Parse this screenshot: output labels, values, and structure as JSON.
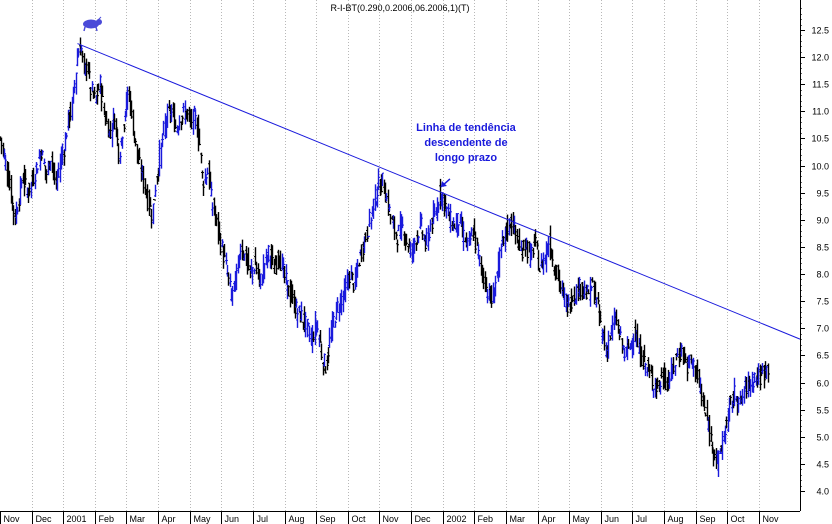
{
  "chart_data": {
    "type": "line",
    "title": "R-I-BT(0.290,0.2006,06.2006,1)(T)",
    "xlabel": "",
    "ylabel": "",
    "ylim": [
      3.8,
      13.0
    ],
    "y_ticks": [
      4.0,
      4.5,
      5.0,
      5.5,
      6.0,
      6.5,
      7.0,
      7.5,
      8.0,
      8.5,
      9.0,
      9.5,
      10.0,
      10.5,
      11.0,
      11.5,
      12.0,
      12.5
    ],
    "y_tick_labels": [
      "4.0",
      "4.5",
      "5.0",
      "5.5",
      "6.0",
      "6.5",
      "7.0",
      "7.5",
      "8.0",
      "8.5",
      "9.0",
      "9.5",
      "10.0",
      "10.5",
      "11.0",
      "11.5",
      "12.0",
      "12.5"
    ],
    "x_tick_labels": [
      "Nov",
      "Dec",
      "2001",
      "Feb",
      "Mar",
      "Apr",
      "May",
      "Jun",
      "Jul",
      "Aug",
      "Sep",
      "Oct",
      "Nov",
      "Dec",
      "2002",
      "Feb",
      "Mar",
      "Apr",
      "May",
      "Jun",
      "Jul",
      "Aug",
      "Sep",
      "Oct",
      "Nov"
    ],
    "x_tick_months": [
      0,
      1,
      2,
      3,
      4,
      5,
      6,
      7,
      8,
      9,
      10,
      11,
      12,
      13,
      14,
      15,
      16,
      17,
      18,
      19,
      20,
      21,
      22,
      23,
      24
    ],
    "x_range_months": [
      0,
      25.3
    ],
    "grid": "vertical-dotted",
    "colors": {
      "up": "#1a1adc",
      "down": "#000000",
      "trendline": "#1a1adc",
      "annotation": "#1a1adc"
    },
    "series": [
      {
        "price_path": [
          [
            0.0,
            10.5
          ],
          [
            0.15,
            10.1
          ],
          [
            0.3,
            9.6
          ],
          [
            0.45,
            9.0
          ],
          [
            0.55,
            9.3
          ],
          [
            0.7,
            9.8
          ],
          [
            0.85,
            9.5
          ],
          [
            1.0,
            9.7
          ],
          [
            1.15,
            10.0
          ],
          [
            1.3,
            10.3
          ],
          [
            1.45,
            9.8
          ],
          [
            1.6,
            10.2
          ],
          [
            1.75,
            9.6
          ],
          [
            1.9,
            10.1
          ],
          [
            2.05,
            10.4
          ],
          [
            2.15,
            10.9
          ],
          [
            2.25,
            11.0
          ],
          [
            2.35,
            11.5
          ],
          [
            2.45,
            12.1
          ],
          [
            2.55,
            12.2
          ],
          [
            2.65,
            11.7
          ],
          [
            2.75,
            11.9
          ],
          [
            2.85,
            11.4
          ],
          [
            3.0,
            11.2
          ],
          [
            3.15,
            11.5
          ],
          [
            3.3,
            10.9
          ],
          [
            3.45,
            10.6
          ],
          [
            3.6,
            10.9
          ],
          [
            3.75,
            10.2
          ],
          [
            3.9,
            10.8
          ],
          [
            4.05,
            11.4
          ],
          [
            4.2,
            10.7
          ],
          [
            4.35,
            10.1
          ],
          [
            4.5,
            9.8
          ],
          [
            4.65,
            9.4
          ],
          [
            4.8,
            9.1
          ],
          [
            4.95,
            9.8
          ],
          [
            5.1,
            10.4
          ],
          [
            5.25,
            10.9
          ],
          [
            5.4,
            11.0
          ],
          [
            5.55,
            10.7
          ],
          [
            5.7,
            10.9
          ],
          [
            5.85,
            11.0
          ],
          [
            6.0,
            10.8
          ],
          [
            6.15,
            10.9
          ],
          [
            6.3,
            10.4
          ],
          [
            6.4,
            9.7
          ],
          [
            6.55,
            9.9
          ],
          [
            6.7,
            9.3
          ],
          [
            6.85,
            8.9
          ],
          [
            7.0,
            8.5
          ],
          [
            7.15,
            8.1
          ],
          [
            7.3,
            7.6
          ],
          [
            7.45,
            7.9
          ],
          [
            7.6,
            8.5
          ],
          [
            7.75,
            8.3
          ],
          [
            7.9,
            8.0
          ],
          [
            8.05,
            8.2
          ],
          [
            8.2,
            7.8
          ],
          [
            8.35,
            8.2
          ],
          [
            8.5,
            8.4
          ],
          [
            8.65,
            8.1
          ],
          [
            8.8,
            8.4
          ],
          [
            8.95,
            8.0
          ],
          [
            9.1,
            7.7
          ],
          [
            9.25,
            7.5
          ],
          [
            9.4,
            7.3
          ],
          [
            9.55,
            7.2
          ],
          [
            9.7,
            7.0
          ],
          [
            9.85,
            6.8
          ],
          [
            10.0,
            7.1
          ],
          [
            10.1,
            6.8
          ],
          [
            10.2,
            6.4
          ],
          [
            10.3,
            6.3
          ],
          [
            10.45,
            6.9
          ],
          [
            10.6,
            7.3
          ],
          [
            10.75,
            7.5
          ],
          [
            10.9,
            7.7
          ],
          [
            11.05,
            8.0
          ],
          [
            11.2,
            7.8
          ],
          [
            11.35,
            8.3
          ],
          [
            11.5,
            8.6
          ],
          [
            11.65,
            8.9
          ],
          [
            11.8,
            9.3
          ],
          [
            11.95,
            9.6
          ],
          [
            12.1,
            9.7
          ],
          [
            12.25,
            9.3
          ],
          [
            12.4,
            8.9
          ],
          [
            12.55,
            8.7
          ],
          [
            12.7,
            8.9
          ],
          [
            12.85,
            8.6
          ],
          [
            13.0,
            8.4
          ],
          [
            13.15,
            8.7
          ],
          [
            13.3,
            8.9
          ],
          [
            13.45,
            8.5
          ],
          [
            13.6,
            8.9
          ],
          [
            13.75,
            9.1
          ],
          [
            13.9,
            9.5
          ],
          [
            14.05,
            9.3
          ],
          [
            14.2,
            9.0
          ],
          [
            14.35,
            8.9
          ],
          [
            14.5,
            9.0
          ],
          [
            14.65,
            8.7
          ],
          [
            14.8,
            8.5
          ],
          [
            14.95,
            8.8
          ],
          [
            15.1,
            8.4
          ],
          [
            15.25,
            8.0
          ],
          [
            15.4,
            7.7
          ],
          [
            15.55,
            7.5
          ],
          [
            15.7,
            8.0
          ],
          [
            15.85,
            8.5
          ],
          [
            16.0,
            8.8
          ],
          [
            16.15,
            9.0
          ],
          [
            16.3,
            8.7
          ],
          [
            16.45,
            8.4
          ],
          [
            16.6,
            8.6
          ],
          [
            16.75,
            8.3
          ],
          [
            16.9,
            8.6
          ],
          [
            17.05,
            8.1
          ],
          [
            17.2,
            8.3
          ],
          [
            17.35,
            8.6
          ],
          [
            17.5,
            8.2
          ],
          [
            17.65,
            7.9
          ],
          [
            17.8,
            7.6
          ],
          [
            17.95,
            7.4
          ],
          [
            18.1,
            7.6
          ],
          [
            18.25,
            7.7
          ],
          [
            18.4,
            7.8
          ],
          [
            18.55,
            7.6
          ],
          [
            18.7,
            7.8
          ],
          [
            18.85,
            7.5
          ],
          [
            19.0,
            7.0
          ],
          [
            19.15,
            6.6
          ],
          [
            19.3,
            6.9
          ],
          [
            19.45,
            7.2
          ],
          [
            19.6,
            6.8
          ],
          [
            19.75,
            6.5
          ],
          [
            19.9,
            6.7
          ],
          [
            20.05,
            6.9
          ],
          [
            20.2,
            6.6
          ],
          [
            20.35,
            6.4
          ],
          [
            20.5,
            6.2
          ],
          [
            20.65,
            6.0
          ],
          [
            20.8,
            5.9
          ],
          [
            20.95,
            6.1
          ],
          [
            21.1,
            6.0
          ],
          [
            21.25,
            6.2
          ],
          [
            21.4,
            6.5
          ],
          [
            21.55,
            6.6
          ],
          [
            21.7,
            6.3
          ],
          [
            21.85,
            6.4
          ],
          [
            22.0,
            6.2
          ],
          [
            22.15,
            5.8
          ],
          [
            22.3,
            5.4
          ],
          [
            22.45,
            5.0
          ],
          [
            22.6,
            4.7
          ],
          [
            22.7,
            4.5
          ],
          [
            22.8,
            4.8
          ],
          [
            22.95,
            5.2
          ],
          [
            23.1,
            5.6
          ],
          [
            23.25,
            5.8
          ],
          [
            23.4,
            5.6
          ],
          [
            23.55,
            5.9
          ],
          [
            23.7,
            6.0
          ],
          [
            23.85,
            6.1
          ],
          [
            24.0,
            6.1
          ],
          [
            24.15,
            6.2
          ],
          [
            24.3,
            6.3
          ]
        ]
      }
    ],
    "trendline": {
      "from": [
        2.45,
        12.25
      ],
      "to": [
        25.3,
        6.8
      ]
    },
    "annotations": [
      {
        "lines": [
          "Linha de tendência",
          "descendente de",
          "longo prazo"
        ],
        "arrow_to": [
          13.85,
          9.55
        ]
      }
    ]
  }
}
